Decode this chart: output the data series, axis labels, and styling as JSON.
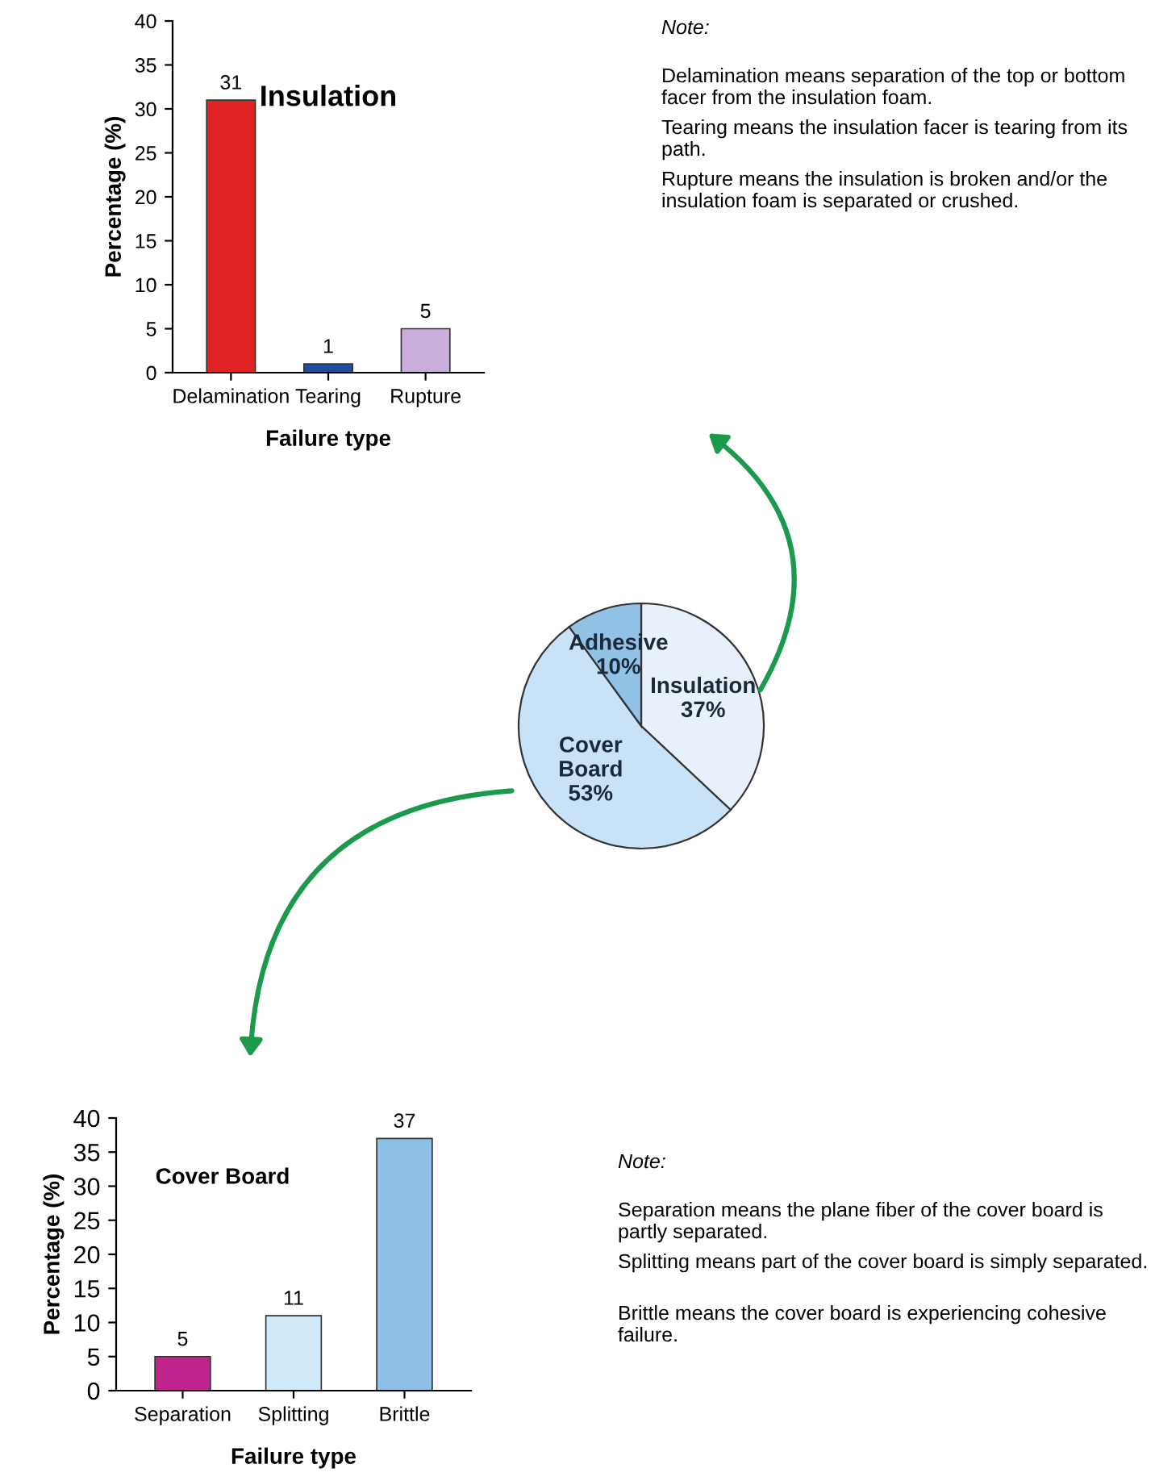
{
  "chart_data": [
    {
      "type": "bar",
      "title": "Insulation",
      "xlabel": "Failure type",
      "ylabel": "Percentage (%)",
      "categories": [
        "Delamination",
        "Tearing",
        "Rupture"
      ],
      "values": [
        31,
        1,
        5
      ],
      "colors": [
        "#e02424",
        "#1f4e9a",
        "#c9aedb"
      ],
      "ylim": [
        0,
        40
      ],
      "yticks": [
        0,
        5,
        10,
        15,
        20,
        25,
        30,
        35,
        40
      ],
      "data_labels": true,
      "grid": false,
      "legend": false,
      "annotations": [
        "Note:",
        "Delamination means separation of the top or bottom facer from the insulation foam.",
        "Tearing means the insulation facer is tearing from its path.",
        "Rupture means the insulation is broken and/or the insulation foam is separated or crushed."
      ]
    },
    {
      "type": "pie",
      "categories": [
        "Insulation",
        "Cover\nBoard",
        "Adhesive"
      ],
      "values": [
        37,
        53,
        10
      ],
      "value_labels": [
        "37%",
        "53%",
        "10%"
      ],
      "colors": [
        "#e8f1fb",
        "#c8e3f7",
        "#92c3e7"
      ],
      "legend": false
    },
    {
      "type": "bar",
      "title": "Cover Board",
      "xlabel": "Failure type",
      "ylabel": "Percentage (%)",
      "categories": [
        "Separation",
        "Splitting",
        "Brittle"
      ],
      "values": [
        5,
        11,
        37
      ],
      "colors": [
        "#c0248c",
        "#d0e9f9",
        "#8fc0e4"
      ],
      "ylim": [
        0,
        40
      ],
      "yticks": [
        0,
        5,
        10,
        15,
        20,
        25,
        30,
        35,
        40
      ],
      "data_labels": true,
      "grid": false,
      "legend": false,
      "annotations": [
        "Note:",
        "Separation means the plane fiber of the cover board is partly separated.",
        "Splitting means part of the cover board is simply separated.",
        "Brittle means the cover board is experiencing cohesive failure."
      ]
    }
  ]
}
